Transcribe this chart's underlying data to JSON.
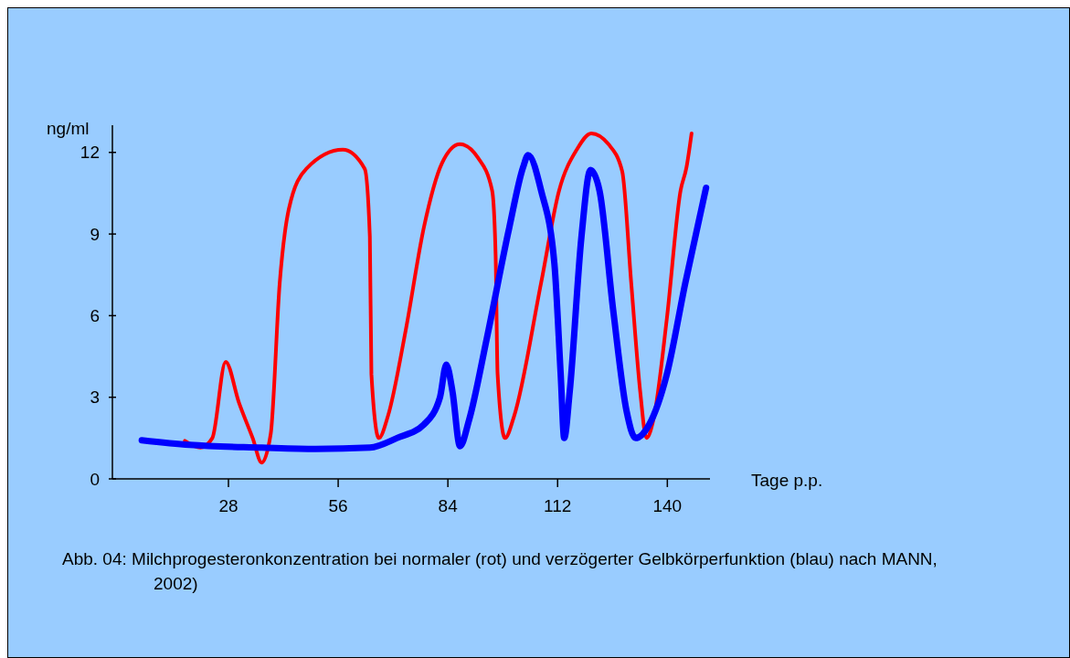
{
  "chart_data": {
    "type": "line",
    "xlabel": "Tage p.p.",
    "ylabel": "ng/ml",
    "xlim": [
      -1.5,
      151
    ],
    "xticks": [
      28,
      56,
      84,
      112,
      140
    ],
    "ylim": [
      0,
      13
    ],
    "yticks": [
      0,
      3,
      6,
      9,
      12
    ],
    "grid": false,
    "marker": "none",
    "line_style": "solid",
    "annotations": [
      "Abb. 04: Milchprogesteronkonzentration bei normaler (rot) und verzögerter Gelbkörperfunktion (blau) nach MANN, 2002)"
    ],
    "series": [
      {
        "color": "#ff0000",
        "x": [
          17,
          21,
          24,
          27.4,
          30.8,
          34.3,
          36.6,
          38.9,
          41.2,
          43.5,
          48,
          57.3,
          62.9,
          64.2,
          64.6,
          66.5,
          68.8,
          73.4,
          78,
          82.6,
          87.2,
          91.8,
          95.4,
          96.3,
          96.8,
          98.7,
          101,
          107.9,
          112.5,
          117,
          120.7,
          125.1,
          128.6,
          130.9,
          133.2,
          134.8,
          136.6,
          140,
          143.5,
          145,
          146.3
        ],
        "values": [
          1.4,
          1.15,
          1.5,
          4.3,
          2.8,
          1.5,
          0.6,
          1.65,
          7.2,
          9.9,
          11.4,
          12.1,
          11.4,
          8.9,
          3.85,
          1.5,
          2.3,
          5.5,
          9.25,
          11.6,
          12.3,
          11.8,
          10.6,
          8.2,
          3.85,
          1.5,
          2.3,
          7.2,
          10.6,
          12.1,
          12.7,
          12.3,
          11.3,
          7.2,
          3.2,
          1.5,
          2.2,
          5.9,
          10.6,
          11.45,
          12.7
        ]
      },
      {
        "color": "#0000ff",
        "x": [
          6,
          18.2,
          36.6,
          50.4,
          64.2,
          71.1,
          78,
          82.1,
          83.7,
          85.3,
          87.2,
          89.5,
          94.1,
          99.8,
          103.3,
          104.6,
          107.9,
          111.3,
          112.9,
          113.8,
          115.2,
          118.2,
          120.5,
          122.8,
          126.3,
          129.7,
          132,
          135.5,
          140,
          144.7,
          150
        ],
        "values": [
          1.42,
          1.25,
          1.15,
          1.1,
          1.15,
          1.5,
          2.0,
          3.0,
          4.2,
          3.2,
          1.2,
          2.15,
          5.2,
          9.25,
          11.45,
          11.9,
          10.6,
          7.9,
          3.85,
          1.5,
          3.2,
          8.9,
          11.35,
          10.6,
          6.2,
          2.5,
          1.5,
          2.0,
          3.85,
          7.2,
          10.7
        ]
      }
    ]
  }
}
